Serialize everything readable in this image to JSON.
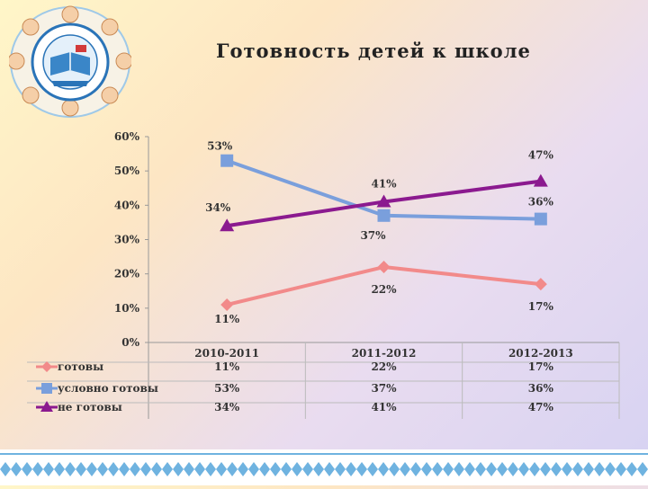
{
  "slide": {
    "title": "Готовность детей к школе"
  },
  "colors": {
    "ready": "#f28a8a",
    "conditional": "#7a9fdc",
    "not_ready": "#8b1a8f",
    "axis": "#333333",
    "ornament": "#6fb3e0"
  },
  "chart_data": {
    "type": "line",
    "categories": [
      "2010-2011",
      "2011-2012",
      "2012-2013"
    ],
    "ylim": [
      0,
      60
    ],
    "y_ticks": [
      0,
      10,
      20,
      30,
      40,
      50,
      60
    ],
    "y_tick_labels": [
      "0%",
      "10%",
      "20%",
      "30%",
      "40%",
      "50%",
      "60%"
    ],
    "grid": false,
    "legend": "left-of-data-table",
    "series": [
      {
        "name": "готовы",
        "values": [
          11,
          22,
          17
        ],
        "labels": [
          "11%",
          "22%",
          "17%"
        ],
        "color": "#f28a8a",
        "marker": "diamond"
      },
      {
        "name": "условно готовы",
        "values": [
          53,
          37,
          36
        ],
        "labels": [
          "53%",
          "37%",
          "36%"
        ],
        "color": "#7a9fdc",
        "marker": "square"
      },
      {
        "name": "не готовы",
        "values": [
          34,
          41,
          47
        ],
        "labels": [
          "34%",
          "41%",
          "47%"
        ],
        "color": "#8b1a8f",
        "marker": "triangle"
      }
    ]
  }
}
